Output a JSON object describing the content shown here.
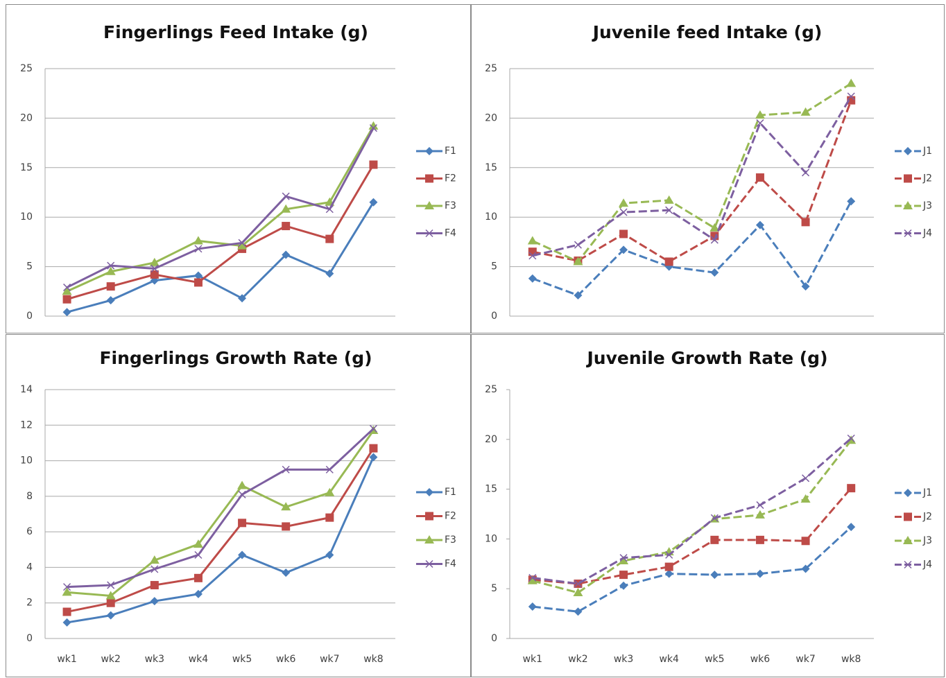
{
  "chart_data": [
    {
      "type": "line",
      "title": "Fingerlings Feed Intake (g)",
      "categories": [
        null,
        null,
        null,
        null,
        null,
        null,
        null,
        null
      ],
      "ylim": [
        0,
        25
      ],
      "yticks": [
        0,
        5,
        10,
        15,
        20,
        25
      ],
      "grid": true,
      "dashed": false,
      "legend": "right",
      "series": [
        {
          "name": "F1",
          "color": "#4a7ebb",
          "marker": "diamond",
          "values": [
            0.4,
            1.6,
            3.6,
            4.1,
            1.8,
            6.2,
            4.3,
            11.5
          ]
        },
        {
          "name": "F2",
          "color": "#be4b48",
          "marker": "square",
          "values": [
            1.7,
            3.0,
            4.2,
            3.4,
            6.8,
            9.1,
            7.8,
            15.3
          ]
        },
        {
          "name": "F3",
          "color": "#98b954",
          "marker": "triangle",
          "values": [
            2.5,
            4.5,
            5.4,
            7.6,
            7.1,
            10.8,
            11.5,
            19.2
          ]
        },
        {
          "name": "F4",
          "color": "#7d5fa0",
          "marker": "x",
          "values": [
            2.9,
            5.1,
            4.8,
            6.8,
            7.4,
            12.1,
            10.8,
            19.0
          ]
        }
      ]
    },
    {
      "type": "line",
      "title": "Juvenile feed Intake (g)",
      "categories": [
        null,
        null,
        null,
        null,
        null,
        null,
        null,
        null
      ],
      "ylim": [
        0,
        25
      ],
      "yticks": [
        0,
        5,
        10,
        15,
        20,
        25
      ],
      "grid": true,
      "dashed": true,
      "legend": "right",
      "series": [
        {
          "name": "J1",
          "color": "#4a7ebb",
          "marker": "diamond",
          "values": [
            3.8,
            2.1,
            6.7,
            5.0,
            4.4,
            9.2,
            3.0,
            11.6
          ]
        },
        {
          "name": "J2",
          "color": "#be4b48",
          "marker": "square",
          "values": [
            6.5,
            5.6,
            8.3,
            5.5,
            8.1,
            14.0,
            9.5,
            21.8
          ]
        },
        {
          "name": "J3",
          "color": "#98b954",
          "marker": "triangle",
          "values": [
            7.6,
            5.5,
            11.4,
            11.7,
            8.9,
            20.3,
            20.6,
            23.5
          ]
        },
        {
          "name": "J4",
          "color": "#7d5fa0",
          "marker": "x",
          "values": [
            6.1,
            7.2,
            10.5,
            10.7,
            7.7,
            19.5,
            14.5,
            22.2
          ]
        }
      ]
    },
    {
      "type": "line",
      "title": "Fingerlings Growth Rate (g)",
      "categories": [
        "wk1",
        "wk2",
        "wk3",
        "wk4",
        "wk5",
        "wk6",
        "wk7",
        "wk8"
      ],
      "ylim": [
        0,
        14
      ],
      "yticks": [
        0,
        2,
        4,
        6,
        8,
        10,
        12,
        14
      ],
      "grid": true,
      "dashed": false,
      "legend": "right",
      "series": [
        {
          "name": "F1",
          "color": "#4a7ebb",
          "marker": "diamond",
          "values": [
            0.9,
            1.3,
            2.1,
            2.5,
            4.7,
            3.7,
            4.7,
            10.2
          ]
        },
        {
          "name": "F2",
          "color": "#be4b48",
          "marker": "square",
          "values": [
            1.5,
            2.0,
            3.0,
            3.4,
            6.5,
            6.3,
            6.8,
            10.7
          ]
        },
        {
          "name": "F3",
          "color": "#98b954",
          "marker": "triangle",
          "values": [
            2.6,
            2.4,
            4.4,
            5.3,
            8.6,
            7.4,
            8.2,
            11.7
          ]
        },
        {
          "name": "F4",
          "color": "#7d5fa0",
          "marker": "x",
          "values": [
            2.9,
            3.0,
            3.9,
            4.7,
            8.1,
            9.5,
            9.5,
            11.8
          ]
        }
      ]
    },
    {
      "type": "line",
      "title": "Juvenile Growth Rate (g)",
      "categories": [
        "wk1",
        "wk2",
        "wk3",
        "wk4",
        "wk5",
        "wk6",
        "wk7",
        "wk8"
      ],
      "ylim": [
        0,
        25
      ],
      "yticks": [
        0,
        5,
        10,
        15,
        20,
        25
      ],
      "grid": false,
      "dashed": true,
      "legend": "right",
      "series": [
        {
          "name": "J1",
          "color": "#4a7ebb",
          "marker": "diamond",
          "values": [
            3.2,
            2.7,
            5.3,
            6.5,
            6.4,
            6.5,
            7.0,
            11.2
          ]
        },
        {
          "name": "J2",
          "color": "#be4b48",
          "marker": "square",
          "values": [
            5.9,
            5.5,
            6.4,
            7.2,
            9.9,
            9.9,
            9.8,
            15.1
          ]
        },
        {
          "name": "J3",
          "color": "#98b954",
          "marker": "triangle",
          "values": [
            5.8,
            4.6,
            7.8,
            8.7,
            12.0,
            12.4,
            14.0,
            19.9
          ]
        },
        {
          "name": "J4",
          "color": "#7d5fa0",
          "marker": "x",
          "values": [
            6.1,
            5.5,
            8.1,
            8.4,
            12.1,
            13.4,
            16.1,
            20.1
          ]
        }
      ]
    }
  ]
}
